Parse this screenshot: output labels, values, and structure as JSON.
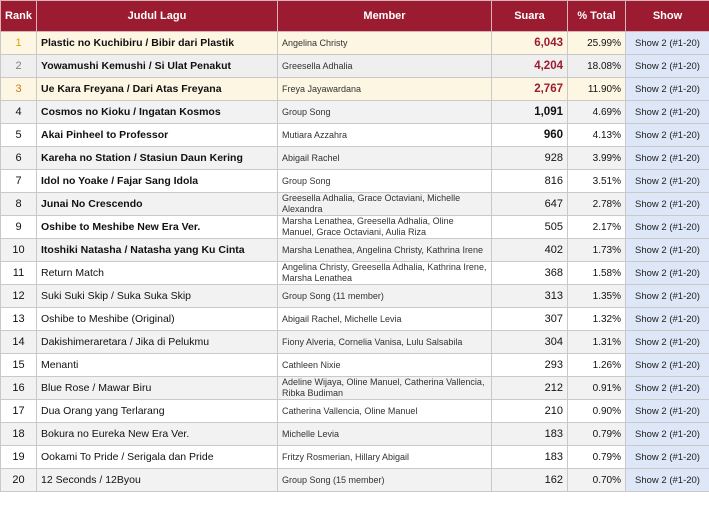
{
  "headers": {
    "rank": "Rank",
    "song": "Judul Lagu",
    "member": "Member",
    "votes": "Suara",
    "pct": "% Total",
    "show": "Show"
  },
  "colors": {
    "header_bg": "#9b1c31",
    "gold": "#d9a400",
    "silver": "#808080",
    "bronze": "#c87a12",
    "show_bg": "#dde7f7"
  },
  "rows": [
    {
      "rank": "1",
      "song": "Plastic no Kuchibiru / Bibir dari Plastik",
      "member": "Angelina Christy",
      "votes": "6,043",
      "pct": "25.99%",
      "show": "Show 2 (#1-20)"
    },
    {
      "rank": "2",
      "song": "Yowamushi Kemushi / Si Ulat Penakut",
      "member": "Greesella Adhalia",
      "votes": "4,204",
      "pct": "18.08%",
      "show": "Show 2 (#1-20)"
    },
    {
      "rank": "3",
      "song": "Ue Kara Freyana / Dari Atas Freyana",
      "member": "Freya Jayawardana",
      "votes": "2,767",
      "pct": "11.90%",
      "show": "Show 2 (#1-20)"
    },
    {
      "rank": "4",
      "song": "Cosmos no Kioku / Ingatan Kosmos",
      "member": "Group Song",
      "votes": "1,091",
      "pct": "4.69%",
      "show": "Show 2 (#1-20)"
    },
    {
      "rank": "5",
      "song": "Akai Pinheel to Professor",
      "member": "Mutiara Azzahra",
      "votes": "960",
      "pct": "4.13%",
      "show": "Show 2 (#1-20)"
    },
    {
      "rank": "6",
      "song": "Kareha no Station / Stasiun Daun Kering",
      "member": "Abigail Rachel",
      "votes": "928",
      "pct": "3.99%",
      "show": "Show 2 (#1-20)"
    },
    {
      "rank": "7",
      "song": "Idol no Yoake / Fajar Sang Idola",
      "member": "Group Song",
      "votes": "816",
      "pct": "3.51%",
      "show": "Show 2 (#1-20)"
    },
    {
      "rank": "8",
      "song": "Junai No Crescendo",
      "member": "Greesella Adhalia, Grace Octaviani, Michelle Alexandra",
      "votes": "647",
      "pct": "2.78%",
      "show": "Show 2 (#1-20)"
    },
    {
      "rank": "9",
      "song": "Oshibe to Meshibe New Era Ver.",
      "member": "Marsha Lenathea, Greesella Adhalia, Oline Manuel, Grace Octaviani, Aulia Riza",
      "votes": "505",
      "pct": "2.17%",
      "show": "Show 2 (#1-20)"
    },
    {
      "rank": "10",
      "song": "Itoshiki Natasha / Natasha yang Ku Cinta",
      "member": "Marsha Lenathea, Angelina Christy, Kathrina Irene",
      "votes": "402",
      "pct": "1.73%",
      "show": "Show 2 (#1-20)"
    },
    {
      "rank": "11",
      "song": "Return Match",
      "member": "Angelina Christy, Greesella Adhalia, Kathrina Irene, Marsha Lenathea",
      "votes": "368",
      "pct": "1.58%",
      "show": "Show 2 (#1-20)"
    },
    {
      "rank": "12",
      "song": "Suki Suki Skip / Suka Suka Skip",
      "member": "Group Song (11 member)",
      "votes": "313",
      "pct": "1.35%",
      "show": "Show 2 (#1-20)"
    },
    {
      "rank": "13",
      "song": "Oshibe to Meshibe (Original)",
      "member": "Abigail Rachel, Michelle Levia",
      "votes": "307",
      "pct": "1.32%",
      "show": "Show 2 (#1-20)"
    },
    {
      "rank": "14",
      "song": "Dakishimeraretara / Jika di Pelukmu",
      "member": "Fiony Alveria, Cornelia Vanisa, Lulu Salsabila",
      "votes": "304",
      "pct": "1.31%",
      "show": "Show 2 (#1-20)"
    },
    {
      "rank": "15",
      "song": "Menanti",
      "member": "Cathleen Nixie",
      "votes": "293",
      "pct": "1.26%",
      "show": "Show 2 (#1-20)"
    },
    {
      "rank": "16",
      "song": "Blue Rose / Mawar Biru",
      "member": "Adeline Wijaya, Oline Manuel, Catherina Vallencia, Ribka Budiman",
      "votes": "212",
      "pct": "0.91%",
      "show": "Show 2 (#1-20)"
    },
    {
      "rank": "17",
      "song": "Dua Orang yang Terlarang",
      "member": "Catherina Vallencia, Oline Manuel",
      "votes": "210",
      "pct": "0.90%",
      "show": "Show 2 (#1-20)"
    },
    {
      "rank": "18",
      "song": "Bokura no Eureka New Era Ver.",
      "member": "Michelle Levia",
      "votes": "183",
      "pct": "0.79%",
      "show": "Show 2 (#1-20)"
    },
    {
      "rank": "19",
      "song": "Ookami To Pride / Serigala dan Pride",
      "member": "Fritzy Rosmerian, Hillary Abigail",
      "votes": "183",
      "pct": "0.79%",
      "show": "Show 2 (#1-20)"
    },
    {
      "rank": "20",
      "song": "12 Seconds / 12Byou",
      "member": "Group Song (15 member)",
      "votes": "162",
      "pct": "0.70%",
      "show": "Show 2 (#1-20)"
    }
  ]
}
